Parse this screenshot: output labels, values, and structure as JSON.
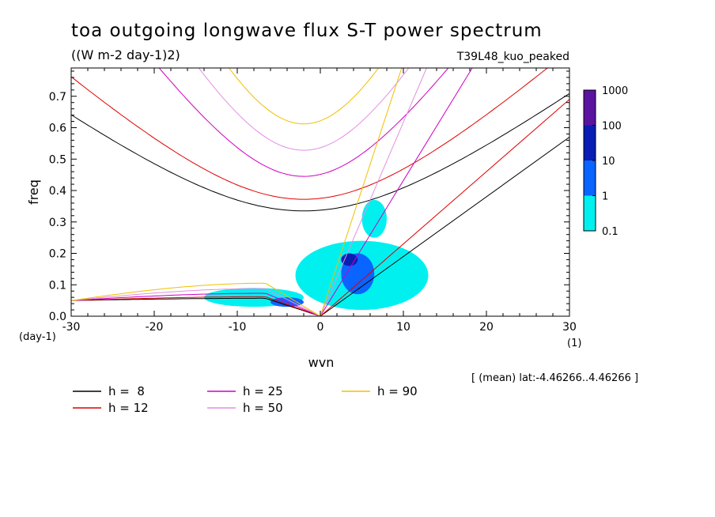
{
  "title": "toa outgoing longwave flux S-T power spectrum",
  "units": "((W m-2 day-1)2)",
  "run_label": "T39L48_kuo_peaked",
  "mean_info": "[ (mean) lat:-4.46266..4.46266 ]",
  "chart_data": {
    "type": "heatmap",
    "title": "toa outgoing longwave flux S-T power spectrum",
    "subtitle": "((W m-2 day-1)2)",
    "xlabel": "wvn",
    "x_unit": "(1)",
    "ylabel": "freq",
    "y_unit": "(day-1)",
    "xlim": [
      -30,
      30
    ],
    "ylim": [
      0,
      0.79
    ],
    "x_ticks": [
      -30,
      -20,
      -10,
      0,
      10,
      20,
      30
    ],
    "x_tick_labels": [
      "-30",
      "-20",
      "-10",
      "0",
      "10",
      "20",
      "30"
    ],
    "y_ticks": [
      0,
      0.1,
      0.2,
      0.3,
      0.4,
      0.5,
      0.6,
      0.7
    ],
    "y_tick_labels": [
      "0.0",
      "0.1",
      "0.2",
      "0.3",
      "0.4",
      "0.5",
      "0.6",
      "0.7"
    ],
    "colorbar": {
      "levels": [
        "0.1",
        "1",
        "10",
        "100",
        "1000"
      ],
      "colors": [
        "#00f0f0",
        "#0a64ff",
        "#0a1eb4",
        "#5a14a0"
      ]
    },
    "legend": [
      {
        "label": "h =  8",
        "color": "#000000"
      },
      {
        "label": "h = 12",
        "color": "#e00000"
      },
      {
        "label": "h = 25",
        "color": "#d000c0"
      },
      {
        "label": "h = 50",
        "color": "#e090e0"
      },
      {
        "label": "h = 90",
        "color": "#f0c000"
      }
    ],
    "dispersion_curves": {
      "equivalent_depths_m": [
        8,
        12,
        25,
        50,
        90
      ],
      "colors": [
        "#000000",
        "#e00000",
        "#d000c0",
        "#e090e0",
        "#f0c000"
      ],
      "kelvin_end_points": [
        {
          "x": 30,
          "y": 0.57
        },
        {
          "x": 30,
          "y": 0.69
        },
        {
          "x": 18.3,
          "y": 0.79
        },
        {
          "x": 12.8,
          "y": 0.79
        },
        {
          "x": 9.8,
          "y": 0.79
        }
      ],
      "eig_minimum_freq": [
        0.335,
        0.372,
        0.445,
        0.528,
        0.612
      ],
      "eig_minimum_wvn": -2,
      "eig_values_at_xmin": [
        0.641,
        0.762
      ],
      "eig_values_at_xmax": [
        0.7,
        0.79
      ],
      "rossby_peak_freq": [
        0.057,
        0.062,
        0.073,
        0.088,
        0.105
      ]
    },
    "power_regions": [
      {
        "level": "0.1-1",
        "x": [
          5,
          8
        ],
        "y": [
          0.25,
          0.37
        ]
      },
      {
        "level": "0.1-1",
        "x": [
          -3,
          13
        ],
        "y": [
          0.02,
          0.24
        ]
      },
      {
        "level": "0.1-1",
        "x": [
          -14,
          -2
        ],
        "y": [
          0.03,
          0.09
        ]
      },
      {
        "level": "1-10",
        "x": [
          2.5,
          6.5
        ],
        "y": [
          0.07,
          0.2
        ]
      },
      {
        "level": "1-10",
        "x": [
          -6,
          -2
        ],
        "y": [
          0.03,
          0.06
        ]
      },
      {
        "level": "10-100",
        "x": [
          2.5,
          4.5
        ],
        "y": [
          0.16,
          0.2
        ]
      }
    ]
  }
}
